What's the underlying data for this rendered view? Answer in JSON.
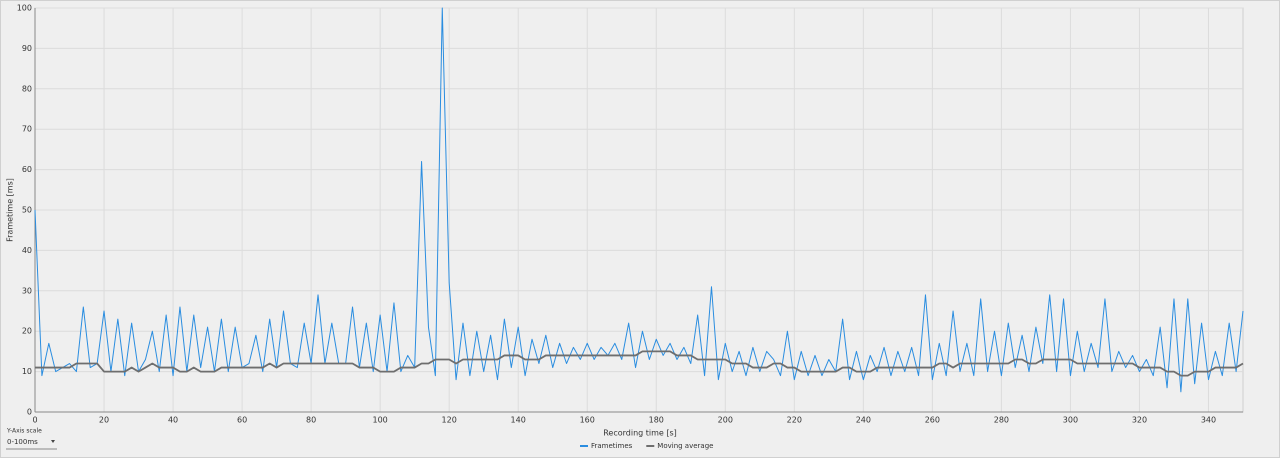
{
  "chart_data": {
    "type": "line",
    "x_label": "Recording time [s]",
    "y_label": "Frametime [ms]",
    "xlim": [
      0,
      350
    ],
    "ylim": [
      0,
      100
    ],
    "xticks": [
      0,
      20,
      40,
      60,
      80,
      100,
      120,
      140,
      160,
      180,
      200,
      220,
      240,
      260,
      280,
      300,
      320,
      340
    ],
    "yticks": [
      0,
      10,
      20,
      30,
      40,
      50,
      60,
      70,
      80,
      90,
      100
    ],
    "grid": true,
    "legend": "bottom",
    "x": [
      0,
      2,
      4,
      6,
      8,
      10,
      12,
      14,
      16,
      18,
      20,
      22,
      24,
      26,
      28,
      30,
      32,
      34,
      36,
      38,
      40,
      42,
      44,
      46,
      48,
      50,
      52,
      54,
      56,
      58,
      60,
      62,
      64,
      66,
      68,
      70,
      72,
      74,
      76,
      78,
      80,
      82,
      84,
      86,
      88,
      90,
      92,
      94,
      96,
      98,
      100,
      102,
      104,
      106,
      108,
      110,
      112,
      114,
      116,
      118,
      120,
      122,
      124,
      126,
      128,
      130,
      132,
      134,
      136,
      138,
      140,
      142,
      144,
      146,
      148,
      150,
      152,
      154,
      156,
      158,
      160,
      162,
      164,
      166,
      168,
      170,
      172,
      174,
      176,
      178,
      180,
      182,
      184,
      186,
      188,
      190,
      192,
      194,
      196,
      198,
      200,
      202,
      204,
      206,
      208,
      210,
      212,
      214,
      216,
      218,
      220,
      222,
      224,
      226,
      228,
      230,
      232,
      234,
      236,
      238,
      240,
      242,
      244,
      246,
      248,
      250,
      252,
      254,
      256,
      258,
      260,
      262,
      264,
      266,
      268,
      270,
      272,
      274,
      276,
      278,
      280,
      282,
      284,
      286,
      288,
      290,
      292,
      294,
      296,
      298,
      300,
      302,
      304,
      306,
      308,
      310,
      312,
      314,
      316,
      318,
      320,
      322,
      324,
      326,
      328,
      330,
      332,
      334,
      336,
      338,
      340,
      342,
      344,
      346,
      348,
      350
    ],
    "series": [
      {
        "name": "Frametimes",
        "color": "#2a8de0",
        "values": [
          50,
          9,
          17,
          10,
          11,
          12,
          10,
          26,
          11,
          12,
          25,
          10,
          23,
          9,
          22,
          10,
          13,
          20,
          10,
          24,
          9,
          26,
          10,
          24,
          11,
          21,
          10,
          23,
          10,
          21,
          11,
          12,
          19,
          10,
          23,
          11,
          25,
          12,
          11,
          22,
          12,
          29,
          12,
          22,
          12,
          12,
          26,
          11,
          22,
          10,
          24,
          10,
          27,
          10,
          14,
          11,
          62,
          21,
          9,
          100,
          32,
          8,
          22,
          9,
          20,
          10,
          19,
          8,
          23,
          11,
          21,
          9,
          18,
          12,
          19,
          11,
          17,
          12,
          16,
          13,
          17,
          13,
          16,
          14,
          17,
          13,
          22,
          11,
          20,
          13,
          18,
          14,
          17,
          13,
          16,
          12,
          24,
          9,
          31,
          8,
          17,
          10,
          15,
          9,
          16,
          10,
          15,
          13,
          9,
          20,
          8,
          15,
          9,
          14,
          9,
          13,
          10,
          23,
          8,
          15,
          8,
          14,
          10,
          16,
          9,
          15,
          10,
          16,
          9,
          29,
          8,
          17,
          9,
          25,
          10,
          17,
          9,
          28,
          10,
          20,
          9,
          22,
          11,
          19,
          10,
          21,
          12,
          29,
          10,
          28,
          9,
          20,
          10,
          17,
          11,
          28,
          10,
          15,
          11,
          14,
          10,
          13,
          9,
          21,
          6,
          28,
          5,
          28,
          7,
          22,
          8,
          15,
          9,
          22,
          10,
          25
        ]
      },
      {
        "name": "Moving average",
        "color": "#6e6e6e",
        "values": [
          11,
          11,
          11,
          11,
          11,
          11,
          12,
          12,
          12,
          12,
          10,
          10,
          10,
          10,
          11,
          10,
          11,
          12,
          11,
          11,
          11,
          10,
          10,
          11,
          10,
          10,
          10,
          11,
          11,
          11,
          11,
          11,
          11,
          11,
          12,
          11,
          12,
          12,
          12,
          12,
          12,
          12,
          12,
          12,
          12,
          12,
          12,
          11,
          11,
          11,
          10,
          10,
          10,
          11,
          11,
          11,
          12,
          12,
          13,
          13,
          13,
          12,
          13,
          13,
          13,
          13,
          13,
          13,
          14,
          14,
          14,
          13,
          13,
          13,
          14,
          14,
          14,
          14,
          14,
          14,
          14,
          14,
          14,
          14,
          14,
          14,
          14,
          14,
          15,
          15,
          15,
          15,
          15,
          14,
          14,
          14,
          13,
          13,
          13,
          13,
          13,
          12,
          12,
          12,
          11,
          11,
          11,
          12,
          12,
          11,
          11,
          10,
          10,
          10,
          10,
          10,
          10,
          11,
          11,
          10,
          10,
          10,
          11,
          11,
          11,
          11,
          11,
          11,
          11,
          11,
          11,
          12,
          12,
          11,
          12,
          12,
          12,
          12,
          12,
          12,
          12,
          12,
          13,
          13,
          12,
          12,
          13,
          13,
          13,
          13,
          13,
          12,
          12,
          12,
          12,
          12,
          12,
          12,
          12,
          12,
          11,
          11,
          11,
          11,
          10,
          10,
          9,
          9,
          10,
          10,
          10,
          11,
          11,
          11,
          11,
          12
        ]
      }
    ]
  },
  "y_axis_scale": {
    "label": "Y-Axis scale",
    "value": "0-100ms"
  }
}
